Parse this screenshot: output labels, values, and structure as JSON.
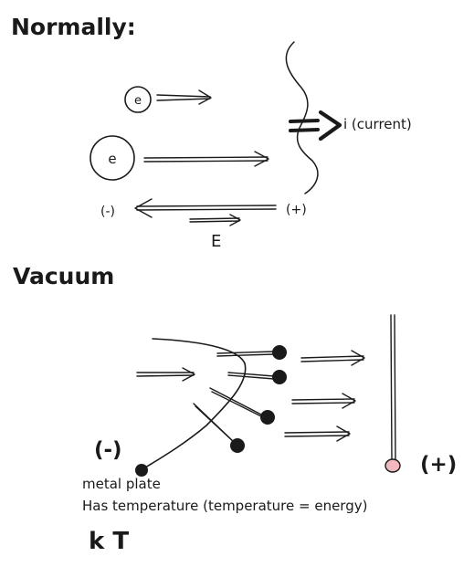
{
  "section_normal": {
    "heading": "Normally:",
    "electron_label": "e",
    "current_label": "i (current)",
    "negative_label": "(-)",
    "positive_label": "(+)",
    "field_label": "E"
  },
  "section_vacuum": {
    "heading": "Vacuum",
    "negative_label": "(-)",
    "positive_label": "(+)",
    "plate_label": "metal plate",
    "temperature_note": "Has temperature (temperature = energy)",
    "formula": "k T"
  },
  "colors": {
    "ink": "#1a1a1a",
    "anode_tip": "#f2b8c0"
  }
}
